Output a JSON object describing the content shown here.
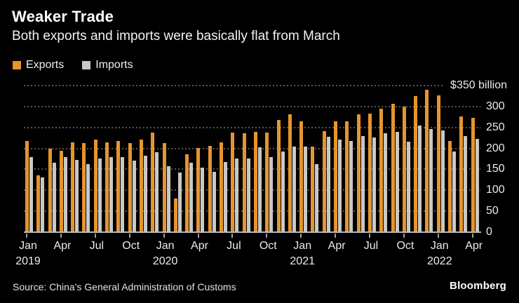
{
  "title": "Weaker Trade",
  "subtitle": "Both exports and imports were basically flat from March",
  "legend": {
    "exports": {
      "label": "Exports",
      "color": "#E5952E"
    },
    "imports": {
      "label": "Imports",
      "color": "#C9C8C6"
    }
  },
  "source": "Source: China's General Administration of Customs",
  "brand": "Bloomberg",
  "colors": {
    "background": "#000000",
    "title_text": "#FFFFFF",
    "axis_text": "#ECECEC",
    "gridline": "#575757",
    "baseline": "#B8B8B8",
    "exports_bar": "#E5952E",
    "imports_bar": "#C9C8C6"
  },
  "chart_data": {
    "type": "bar",
    "title": "Weaker Trade",
    "subtitle": "Both exports and imports were basically flat from March",
    "unit": "USD billions",
    "ylim": [
      0,
      350
    ],
    "grid": "dotted-horizontal",
    "legend_position": "top-left",
    "yticks": [
      {
        "value": 350,
        "label": "$350 billion"
      },
      {
        "value": 300,
        "label": "300"
      },
      {
        "value": 250,
        "label": "250"
      },
      {
        "value": 200,
        "label": "200"
      },
      {
        "value": 150,
        "label": "150"
      },
      {
        "value": 100,
        "label": "100"
      },
      {
        "value": 50,
        "label": "50"
      },
      {
        "value": 0,
        "label": "0"
      }
    ],
    "categories": [
      "Jan 2019",
      "Feb 2019",
      "Mar 2019",
      "Apr 2019",
      "May 2019",
      "Jun 2019",
      "Jul 2019",
      "Aug 2019",
      "Sep 2019",
      "Oct 2019",
      "Nov 2019",
      "Dec 2019",
      "Jan 2020",
      "Feb 2020",
      "Mar 2020",
      "Apr 2020",
      "May 2020",
      "Jun 2020",
      "Jul 2020",
      "Aug 2020",
      "Sep 2020",
      "Oct 2020",
      "Nov 2020",
      "Dec 2020",
      "Jan 2021",
      "Feb 2021",
      "Mar 2021",
      "Apr 2021",
      "May 2021",
      "Jun 2021",
      "Jul 2021",
      "Aug 2021",
      "Sep 2021",
      "Oct 2021",
      "Nov 2021",
      "Dec 2021",
      "Jan 2022",
      "Feb 2022",
      "Mar 2022",
      "Apr 2022"
    ],
    "xticks": [
      {
        "index": 0,
        "month": "Jan",
        "year": "2019"
      },
      {
        "index": 3,
        "month": "Apr"
      },
      {
        "index": 6,
        "month": "Jul"
      },
      {
        "index": 9,
        "month": "Oct"
      },
      {
        "index": 12,
        "month": "Jan",
        "year": "2020"
      },
      {
        "index": 15,
        "month": "Apr"
      },
      {
        "index": 18,
        "month": "Jul"
      },
      {
        "index": 21,
        "month": "Oct"
      },
      {
        "index": 24,
        "month": "Jan",
        "year": "2021"
      },
      {
        "index": 27,
        "month": "Apr"
      },
      {
        "index": 30,
        "month": "Jul"
      },
      {
        "index": 33,
        "month": "Oct"
      },
      {
        "index": 36,
        "month": "Jan",
        "year": "2022"
      },
      {
        "index": 39,
        "month": "Apr"
      }
    ],
    "series": [
      {
        "name": "Exports",
        "color": "#E5952E",
        "values": [
          217.6,
          135.2,
          198.7,
          193.5,
          213.9,
          212.8,
          221.6,
          214.8,
          218.1,
          212.9,
          221.7,
          237.7,
          212.4,
          80.6,
          185.2,
          200.3,
          206.8,
          213.6,
          237.6,
          235.3,
          239.8,
          237.2,
          268.1,
          281.9,
          263.9,
          205.0,
          241.1,
          263.9,
          263.9,
          281.4,
          282.7,
          294.3,
          305.7,
          300.2,
          325.5,
          340.5,
          327.3,
          217.4,
          276.1,
          273.6
        ]
      },
      {
        "name": "Imports",
        "color": "#C9C8C6",
        "values": [
          178.5,
          131.1,
          166.0,
          179.7,
          172.2,
          161.9,
          176.4,
          180.0,
          178.6,
          170.0,
          183.0,
          190.5,
          157.0,
          143.0,
          165.3,
          154.9,
          143.9,
          167.2,
          175.3,
          176.3,
          202.8,
          178.7,
          192.6,
          203.7,
          203.9,
          161.7,
          227.3,
          221.1,
          218.4,
          229.9,
          226.1,
          236.0,
          240.0,
          215.7,
          253.8,
          246.0,
          243.0,
          192.8,
          228.7,
          222.5
        ]
      }
    ]
  }
}
